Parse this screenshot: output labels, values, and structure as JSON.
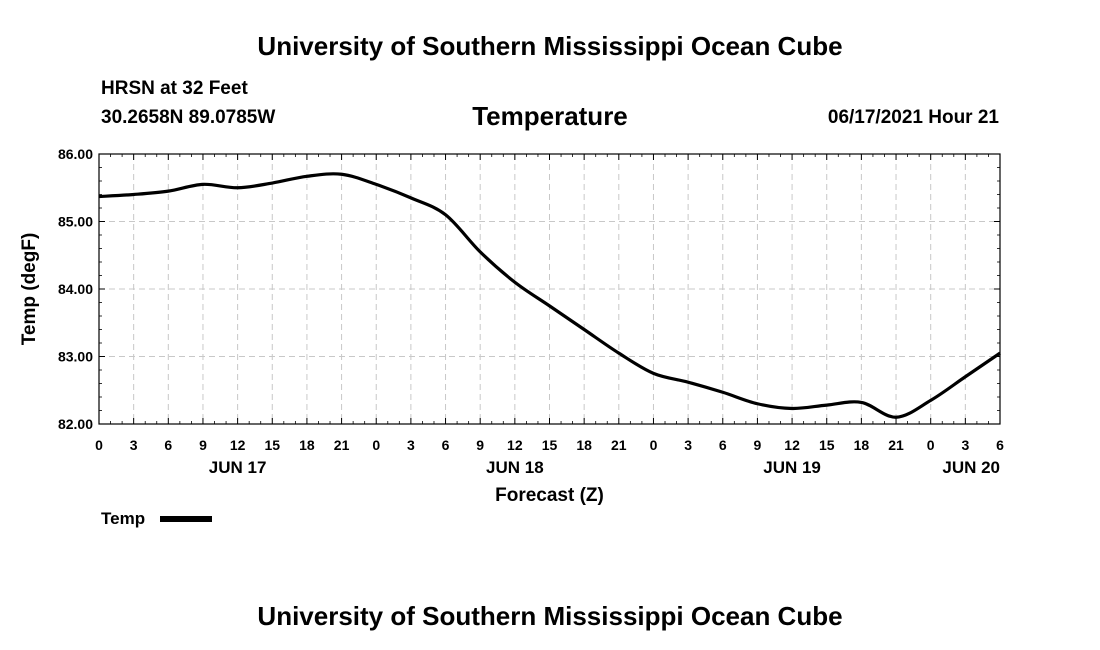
{
  "header": {
    "title_top": "University of Southern Mississippi Ocean Cube",
    "station": "HRSN at 32 Feet",
    "coords": "30.2658N  89.0785W",
    "subtitle": "Temperature",
    "timestamp": "06/17/2021 Hour 21",
    "title_bottom": "University of Southern Mississippi Ocean Cube"
  },
  "chart_data": {
    "type": "line",
    "title": "Temperature",
    "xlabel": "Forecast (Z)",
    "ylabel": "Temp (degF)",
    "xlim": [
      0,
      78
    ],
    "ylim": [
      82.0,
      86.0
    ],
    "yticks": [
      "82.00",
      "83.00",
      "84.00",
      "85.00",
      "86.00"
    ],
    "ytick_values": [
      82,
      83,
      84,
      85,
      86
    ],
    "xticks": [
      "0",
      "3",
      "6",
      "9",
      "12",
      "15",
      "18",
      "21",
      "0",
      "3",
      "6",
      "9",
      "12",
      "15",
      "18",
      "21",
      "0",
      "3",
      "6",
      "9",
      "12",
      "15",
      "18",
      "21",
      "0",
      "3",
      "6"
    ],
    "date_labels": [
      {
        "label": "JUN 17",
        "hour": 12
      },
      {
        "label": "JUN 18",
        "hour": 36
      },
      {
        "label": "JUN 19",
        "hour": 60
      },
      {
        "label": "JUN 20",
        "hour": 78
      }
    ],
    "grid": true,
    "legend": {
      "label": "Temp",
      "position": "bottom-left"
    },
    "series": [
      {
        "name": "Temp",
        "x": [
          0,
          3,
          6,
          9,
          12,
          15,
          18,
          21,
          24,
          27,
          30,
          33,
          36,
          39,
          42,
          45,
          48,
          51,
          54,
          57,
          60,
          63,
          66,
          69,
          72,
          75,
          78
        ],
        "values": [
          85.37,
          85.4,
          85.45,
          85.55,
          85.5,
          85.57,
          85.67,
          85.7,
          85.55,
          85.35,
          85.1,
          84.55,
          84.1,
          83.75,
          83.4,
          83.05,
          82.75,
          82.62,
          82.47,
          82.3,
          82.23,
          82.28,
          82.32,
          82.1,
          82.35,
          82.7,
          83.05
        ]
      }
    ]
  }
}
